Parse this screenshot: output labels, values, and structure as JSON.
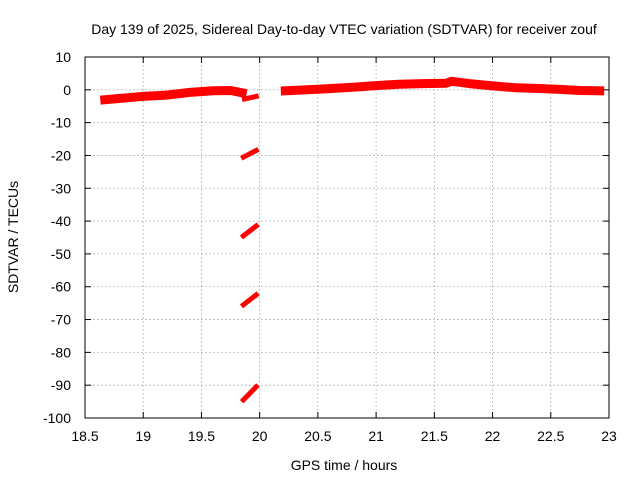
{
  "chart_data": {
    "type": "scatter",
    "title": "Day 139 of 2025, Sidereal Day-to-day VTEC variation (SDTVAR) for receiver zouf",
    "xlabel": "GPS time / hours",
    "ylabel": "SDTVAR / TECUs",
    "xlim": [
      18.5,
      23
    ],
    "ylim": [
      -100,
      10
    ],
    "xticks": [
      18.5,
      19,
      19.5,
      20,
      20.5,
      21,
      21.5,
      22,
      22.5,
      23
    ],
    "xtick_labels": [
      "18.5",
      "19",
      "19.5",
      "20",
      "20.5",
      "21",
      "21.5",
      "22",
      "22.5",
      "23"
    ],
    "yticks": [
      -100,
      -90,
      -80,
      -70,
      -60,
      -50,
      -40,
      -30,
      -20,
      -10,
      0,
      10
    ],
    "ytick_labels": [
      "-100",
      "-90",
      "-80",
      "-70",
      "-60",
      "-50",
      "-40",
      "-30",
      "-20",
      "-10",
      "0",
      "10"
    ],
    "grid": true,
    "series_color": "#ff0000",
    "series": [
      {
        "name": "main-band-1",
        "points": [
          [
            18.67,
            -3.0
          ],
          [
            18.8,
            -2.6
          ],
          [
            19.0,
            -2.0
          ],
          [
            19.2,
            -1.6
          ],
          [
            19.4,
            -0.8
          ],
          [
            19.6,
            -0.3
          ],
          [
            19.75,
            -0.2
          ],
          [
            19.85,
            -0.9
          ]
        ]
      },
      {
        "name": "main-band-2",
        "points": [
          [
            20.22,
            -0.3
          ],
          [
            20.5,
            0.2
          ],
          [
            20.8,
            0.8
          ],
          [
            21.0,
            1.3
          ],
          [
            21.2,
            1.7
          ],
          [
            21.4,
            1.9
          ],
          [
            21.6,
            2.0
          ],
          [
            21.65,
            2.6
          ],
          [
            21.8,
            1.9
          ],
          [
            22.0,
            1.2
          ],
          [
            22.2,
            0.6
          ],
          [
            22.4,
            0.4
          ],
          [
            22.6,
            0.1
          ],
          [
            22.75,
            -0.2
          ],
          [
            22.92,
            -0.3
          ]
        ]
      },
      {
        "name": "gap-segment-1",
        "points": [
          [
            19.87,
            -2.8
          ],
          [
            19.97,
            -2.0
          ]
        ]
      },
      {
        "name": "gap-segment-2",
        "points": [
          [
            19.86,
            -20.5
          ],
          [
            19.97,
            -18.5
          ]
        ]
      },
      {
        "name": "gap-segment-3",
        "points": [
          [
            19.86,
            -44.5
          ],
          [
            19.97,
            -41.5
          ]
        ]
      },
      {
        "name": "gap-segment-4",
        "points": [
          [
            19.86,
            -65.5
          ],
          [
            19.97,
            -62.5
          ]
        ]
      },
      {
        "name": "gap-segment-5",
        "points": [
          [
            19.86,
            -94.5
          ],
          [
            19.97,
            -90.5
          ]
        ]
      }
    ]
  }
}
